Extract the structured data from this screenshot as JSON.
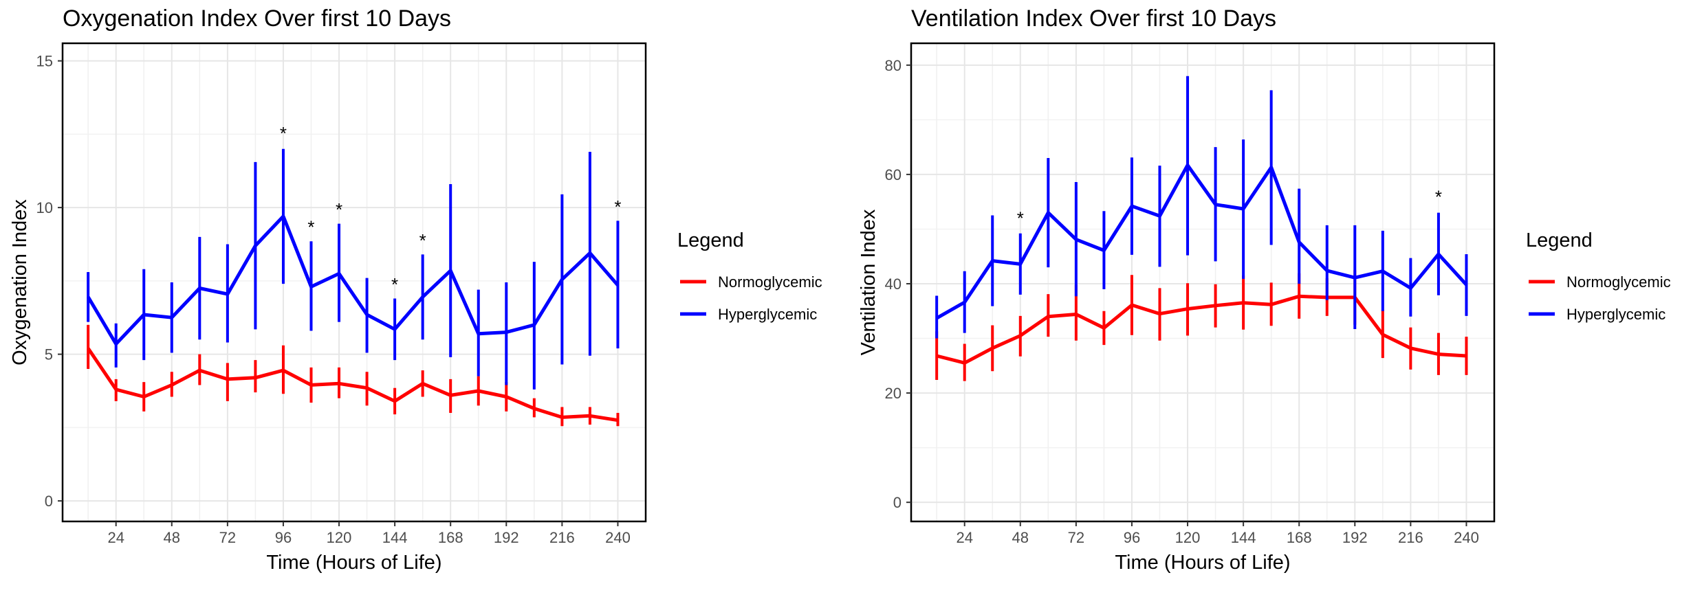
{
  "chart_data": [
    {
      "type": "line",
      "title": "Oxygenation Index Over first 10 Days",
      "xlabel": "Time (Hours of Life)",
      "ylabel": "Oxygenation Index",
      "x": [
        12,
        24,
        36,
        48,
        60,
        72,
        84,
        96,
        108,
        120,
        132,
        144,
        156,
        168,
        180,
        192,
        204,
        216,
        228,
        240
      ],
      "xticks": [
        24,
        48,
        72,
        96,
        120,
        144,
        168,
        192,
        216,
        240
      ],
      "xlim": [
        1,
        252
      ],
      "yticks": [
        0,
        5,
        10,
        15
      ],
      "ylim": [
        -0.7,
        15.6
      ],
      "grid": true,
      "legend": {
        "title": "Legend",
        "position": "right",
        "entries": [
          {
            "label": "Normoglycemic",
            "color": "#ff0000"
          },
          {
            "label": "Hyperglycemic",
            "color": "#0000ff"
          }
        ]
      },
      "series": [
        {
          "name": "Normoglycemic",
          "color": "#ff0000",
          "values": [
            5.2,
            3.8,
            3.55,
            3.95,
            4.45,
            4.15,
            4.2,
            4.45,
            3.95,
            4.0,
            3.85,
            3.4,
            4.0,
            3.6,
            3.75,
            3.55,
            3.15,
            2.85,
            2.9,
            2.75
          ],
          "lower": [
            4.5,
            3.4,
            3.05,
            3.55,
            3.95,
            3.4,
            3.7,
            3.65,
            3.35,
            3.5,
            3.25,
            2.95,
            3.55,
            3.0,
            3.25,
            3.05,
            2.85,
            2.55,
            2.6,
            2.55
          ],
          "upper": [
            6.0,
            4.15,
            4.05,
            4.4,
            5.0,
            4.7,
            4.8,
            5.3,
            4.55,
            4.55,
            4.4,
            3.85,
            4.45,
            4.15,
            4.25,
            4.05,
            3.5,
            3.2,
            3.2,
            3.0
          ]
        },
        {
          "name": "Hyperglycemic",
          "color": "#0000ff",
          "values": [
            6.95,
            5.35,
            6.35,
            6.25,
            7.25,
            7.05,
            8.7,
            9.7,
            7.3,
            7.75,
            6.35,
            5.85,
            6.95,
            7.85,
            5.7,
            5.75,
            6.0,
            7.55,
            8.45,
            7.35
          ],
          "lower": [
            6.1,
            4.55,
            4.8,
            5.05,
            5.5,
            5.4,
            5.85,
            7.4,
            5.8,
            6.1,
            5.05,
            4.8,
            5.5,
            4.9,
            4.25,
            3.95,
            3.8,
            4.65,
            4.95,
            5.2
          ],
          "upper": [
            7.8,
            6.05,
            7.9,
            7.45,
            9.0,
            8.75,
            11.55,
            12.0,
            8.85,
            9.45,
            7.6,
            6.9,
            8.4,
            10.8,
            7.2,
            7.45,
            8.15,
            10.45,
            11.9,
            9.55
          ]
        }
      ],
      "annotations": [
        {
          "x": 96,
          "y": 12.6,
          "text": "*"
        },
        {
          "x": 108,
          "y": 9.4,
          "text": "*"
        },
        {
          "x": 120,
          "y": 10.0,
          "text": "*"
        },
        {
          "x": 144,
          "y": 7.45,
          "text": "*"
        },
        {
          "x": 156,
          "y": 8.95,
          "text": "*"
        },
        {
          "x": 240,
          "y": 10.1,
          "text": "*"
        }
      ]
    },
    {
      "type": "line",
      "title": "Ventilation Index Over first 10 Days",
      "xlabel": "Time (Hours of Life)",
      "ylabel": "Ventilation Index",
      "x": [
        12,
        24,
        36,
        48,
        60,
        72,
        84,
        96,
        108,
        120,
        132,
        144,
        156,
        168,
        180,
        192,
        204,
        216,
        228,
        240
      ],
      "xticks": [
        24,
        48,
        72,
        96,
        120,
        144,
        168,
        192,
        216,
        240
      ],
      "xlim": [
        1,
        252
      ],
      "yticks": [
        0,
        20,
        40,
        60,
        80
      ],
      "ylim": [
        -3.5,
        84
      ],
      "grid": true,
      "legend": {
        "title": "Legend",
        "position": "right",
        "entries": [
          {
            "label": "Normoglycemic",
            "color": "#ff0000"
          },
          {
            "label": "Hyperglycemic",
            "color": "#0000ff"
          }
        ]
      },
      "series": [
        {
          "name": "Normoglycemic",
          "color": "#ff0000",
          "values": [
            26.8,
            25.5,
            28.2,
            30.5,
            34.0,
            34.4,
            31.9,
            36.1,
            34.5,
            35.4,
            36.0,
            36.5,
            36.2,
            37.7,
            37.5,
            37.5,
            30.7,
            28.2,
            27.1,
            26.8
          ],
          "lower": [
            22.4,
            22.2,
            24.0,
            26.7,
            30.3,
            29.6,
            28.8,
            30.6,
            29.6,
            30.5,
            32.0,
            31.6,
            32.3,
            33.6,
            34.1,
            32.5,
            26.4,
            24.3,
            23.3,
            23.3
          ],
          "upper": [
            31.3,
            29.0,
            32.4,
            34.1,
            38.1,
            39.8,
            35.0,
            41.6,
            39.2,
            40.1,
            39.9,
            41.5,
            40.2,
            41.9,
            41.0,
            42.5,
            35.2,
            32.0,
            31.0,
            30.3
          ]
        },
        {
          "name": "Hyperglycemic",
          "color": "#0000ff",
          "values": [
            33.7,
            36.6,
            44.2,
            43.6,
            53.0,
            48.1,
            46.1,
            54.2,
            52.4,
            61.7,
            54.5,
            53.7,
            61.3,
            47.6,
            42.4,
            41.1,
            42.3,
            39.2,
            45.4,
            39.8
          ],
          "lower": [
            30.0,
            31.0,
            35.9,
            38.0,
            43.0,
            37.7,
            39.0,
            45.3,
            43.1,
            45.2,
            44.1,
            40.9,
            47.1,
            40.0,
            37.0,
            31.7,
            35.0,
            34.0,
            37.9,
            34.1
          ],
          "upper": [
            37.8,
            42.3,
            52.5,
            49.2,
            63.0,
            58.6,
            53.3,
            63.1,
            61.6,
            78.0,
            65.0,
            66.4,
            75.4,
            57.4,
            50.7,
            50.7,
            49.7,
            44.7,
            53.0,
            45.4
          ]
        }
      ],
      "annotations": [
        {
          "x": 48,
          "y": 52.4,
          "text": "*"
        },
        {
          "x": 228,
          "y": 56.3,
          "text": "*"
        }
      ]
    }
  ]
}
